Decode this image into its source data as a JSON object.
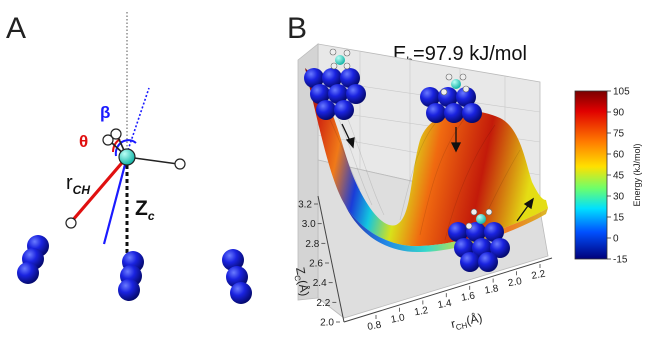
{
  "panel_a": {
    "label": "A",
    "beta_label": "β",
    "theta_label": "θ",
    "rch_main": "r",
    "rch_sub": "CH",
    "zc_main": "Z",
    "zc_sub": "c",
    "colors": {
      "beta": "#1a1aff",
      "theta": "#e01010",
      "atom_c": "#1cc7c0",
      "surface_atom": "#1a1aee"
    }
  },
  "panel_b": {
    "label": "B",
    "barrier_main": "E",
    "barrier_sub": "b",
    "barrier_value": "=97.9 kJ/mol",
    "colorbar": {
      "title": "Energy (kJ/mol)",
      "ticks": [
        "105",
        "90",
        "75",
        "60",
        "45",
        "30",
        "15",
        "0",
        "-15"
      ],
      "range": [
        -15,
        105
      ]
    },
    "axes": {
      "zc_label_main": "Z",
      "zc_label_sub": "C",
      "zc_label_unit": "(Å)",
      "zc_ticks": [
        "3.2",
        "3.0",
        "2.8",
        "2.6",
        "2.4",
        "2.2",
        "2.0"
      ],
      "rch_label_main": "r",
      "rch_label_sub": "CH",
      "rch_label_unit": "(Å)",
      "rch_ticks": [
        "0.8",
        "1.0",
        "1.2",
        "1.4",
        "1.6",
        "1.8",
        "2.0",
        "2.2"
      ]
    }
  }
}
